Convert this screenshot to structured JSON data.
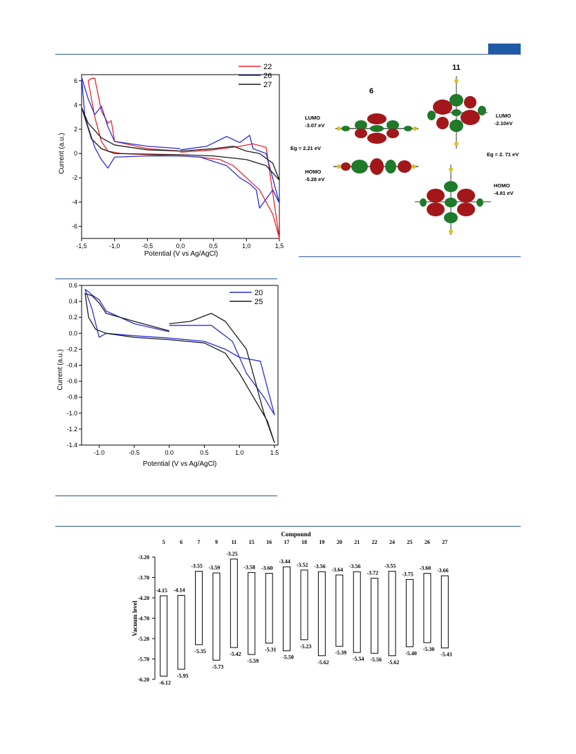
{
  "colors": {
    "rule": "#2f5597",
    "red": "#e8242b",
    "blue": "#2b2bd9",
    "black": "#1a1a1a"
  },
  "chart_data": [
    {
      "type": "line",
      "xlabel": "Potential (V vs Ag/AgCl)",
      "ylabel": "Current (a.u.)",
      "xlim": [
        -1.5,
        1.5
      ],
      "ylim": [
        -7,
        6.5
      ],
      "xticks": [
        "-1,5",
        "-1,0",
        "-0,5",
        "0,0",
        "0,5",
        "1,0",
        "1,5"
      ],
      "xtickValues": [
        -1.5,
        -1.0,
        -0.5,
        0.0,
        0.5,
        1.0,
        1.5
      ],
      "yticks": [
        -6,
        -4,
        -2,
        0,
        2,
        4,
        6
      ],
      "legend_position": "top-right",
      "series": [
        {
          "name": "22",
          "color": "#e8242b",
          "x": [
            0.0,
            0.5,
            0.9,
            1.1,
            1.3,
            1.5,
            1.4,
            1.2,
            1.0,
            0.8,
            0.6,
            0.3,
            0.0,
            -0.5,
            -0.9,
            -1.1,
            -1.2,
            -1.3,
            -1.4,
            -1.35,
            -1.3,
            -1.2,
            -1.1,
            -1.05,
            -1.0,
            -0.5,
            0.0
          ],
          "y": [
            0.1,
            0.3,
            0.6,
            0.8,
            0.5,
            -7.0,
            -5.0,
            -3.0,
            -2.0,
            -1.0,
            -0.5,
            -0.3,
            -0.2,
            -0.1,
            0.0,
            0.2,
            1.0,
            3.0,
            6.0,
            6.2,
            6.2,
            3.5,
            2.5,
            2.7,
            1.0,
            0.4,
            0.2
          ]
        },
        {
          "name": "26",
          "color": "#2b2bd9",
          "x": [
            0.0,
            0.4,
            0.7,
            0.9,
            1.05,
            1.1,
            1.3,
            1.5,
            1.4,
            1.2,
            1.15,
            1.05,
            0.9,
            0.7,
            0.3,
            0.0,
            -0.5,
            -1.0,
            -1.1,
            -1.2,
            -1.3,
            -1.45,
            -1.5,
            -1.4,
            -1.3,
            -1.2,
            -1.1,
            -1.0,
            -0.5,
            0.0
          ],
          "y": [
            0.3,
            0.6,
            1.4,
            0.9,
            1.5,
            0.4,
            0.0,
            -4.1,
            -3.0,
            -4.5,
            -3.0,
            -2.5,
            -2.0,
            -1.0,
            -0.3,
            -0.2,
            -0.2,
            -0.3,
            -1.2,
            -0.5,
            0.5,
            3.0,
            6.3,
            4.5,
            3.2,
            3.9,
            2.2,
            1.0,
            0.6,
            0.4
          ]
        },
        {
          "name": "27",
          "color": "#1a1a1a",
          "x": [
            0.0,
            0.5,
            0.8,
            1.0,
            1.2,
            1.4,
            1.5,
            1.3,
            1.0,
            0.5,
            0.0,
            -0.5,
            -1.0,
            -1.2,
            -1.35,
            -1.5,
            -1.4,
            -1.2,
            -1.0,
            -0.5,
            0.0
          ],
          "y": [
            0.2,
            0.4,
            0.6,
            0.2,
            0.0,
            -0.8,
            -2.2,
            -1.0,
            -0.5,
            -0.2,
            -0.1,
            -0.05,
            0.0,
            0.4,
            1.2,
            3.8,
            2.5,
            1.3,
            0.7,
            0.3,
            0.2
          ]
        }
      ]
    },
    {
      "type": "line",
      "xlabel": "Potential (V vs Ag/AgCl)",
      "ylabel": "Current (a.u.)",
      "xlim": [
        -1.25,
        1.55
      ],
      "ylim": [
        -1.4,
        0.6
      ],
      "xticks": [
        "-1.0",
        "-0.5",
        "0.0",
        "0.5",
        "1.0",
        "1.5"
      ],
      "xtickValues": [
        -1.0,
        -0.5,
        0.0,
        0.5,
        1.0,
        1.5
      ],
      "yticks": [
        "-1.4",
        "-1.2",
        "-1.0",
        "-0.8",
        "-0.6",
        "-0.4",
        "-0.2",
        "0.0",
        "0.2",
        "0.4",
        "0.6"
      ],
      "ytickValues": [
        -1.4,
        -1.2,
        -1.0,
        -0.8,
        -0.6,
        -0.4,
        -0.2,
        0.0,
        0.2,
        0.4,
        0.6
      ],
      "legend_position": "top-right",
      "series": [
        {
          "name": "20",
          "color": "#2b2bd9",
          "x": [
            0.0,
            -0.5,
            -0.9,
            -1.0,
            -1.1,
            -1.15,
            -1.2,
            -1.1,
            -1.0,
            -0.9,
            -0.5,
            0.0,
            0.5,
            0.8,
            1.0,
            1.3,
            1.5,
            1.35,
            1.1,
            0.9,
            0.6,
            0.3,
            0.0
          ],
          "y": [
            0.02,
            0.12,
            0.28,
            0.42,
            0.48,
            0.52,
            0.55,
            0.3,
            -0.05,
            0.0,
            -0.03,
            -0.06,
            -0.1,
            -0.2,
            -0.3,
            -0.35,
            -1.02,
            -0.8,
            -0.5,
            -0.1,
            0.1,
            0.1,
            0.1
          ]
        },
        {
          "name": "25",
          "color": "#1a1a1a",
          "x": [
            0.0,
            -0.5,
            -0.9,
            -1.0,
            -1.1,
            -1.2,
            -1.15,
            -1.05,
            -0.9,
            -0.5,
            0.0,
            0.5,
            0.8,
            1.0,
            1.2,
            1.4,
            1.5,
            1.35,
            1.1,
            0.8,
            0.6,
            0.3,
            0.0
          ],
          "y": [
            0.03,
            0.15,
            0.25,
            0.38,
            0.47,
            0.5,
            0.2,
            0.05,
            0.0,
            -0.05,
            -0.08,
            -0.12,
            -0.25,
            -0.5,
            -0.8,
            -1.1,
            -1.37,
            -1.0,
            -0.2,
            0.15,
            0.25,
            0.15,
            0.12
          ]
        }
      ]
    },
    {
      "type": "bar",
      "title": "Compound",
      "ylabel": "Vacuum level",
      "ylim": [
        -6.2,
        -3.2
      ],
      "yticks": [
        "-3.20",
        "-3.70",
        "-4.20",
        "-4.70",
        "-5.20",
        "-5.70",
        "-6.20"
      ],
      "ytickValues": [
        -3.2,
        -3.7,
        -4.2,
        -4.7,
        -5.2,
        -5.7,
        -6.2
      ],
      "categories": [
        "5",
        "6",
        "7",
        "9",
        "11",
        "15",
        "16",
        "17",
        "18",
        "19",
        "20",
        "21",
        "22",
        "24",
        "25",
        "26",
        "27"
      ],
      "lumo": [
        -4.15,
        -4.14,
        -3.55,
        -3.59,
        -3.25,
        -3.58,
        -3.6,
        -3.44,
        -3.52,
        -3.56,
        -3.64,
        -3.56,
        -3.72,
        -3.55,
        -3.75,
        -3.6,
        -3.66
      ],
      "homo": [
        -6.12,
        -5.95,
        -5.35,
        -5.73,
        -5.42,
        -5.59,
        -5.31,
        -5.5,
        -5.23,
        -5.62,
        -5.39,
        -5.54,
        -5.56,
        -5.62,
        -5.4,
        -5.3,
        -5.43
      ],
      "lumo_labels": [
        "-4.15",
        "-4.14",
        "-3.55",
        "-3.59",
        "-3.25",
        "-3.58",
        "-3.60",
        "-3.44",
        "-3.52",
        "-3.56",
        "-3.64",
        "-3.56",
        "-3.72",
        "-3.55",
        "-3.75",
        "-3.60",
        "-3.66"
      ],
      "homo_labels": [
        "-6.12",
        "-5.95",
        "-5.35",
        "-5.73",
        "-5.42",
        "-5.59",
        "-5.31",
        "-5.50",
        "-5.23",
        "-5.62",
        "-5.39",
        "-5.54",
        "-5.56",
        "-5.62",
        "-5.40",
        "-5.30",
        "-5.43"
      ]
    }
  ],
  "orbitals": {
    "left": {
      "id": "6",
      "lumo_label": "LUMO",
      "lumo_energy": "-3.07 eV",
      "gap": "Eg = 2.21 eV",
      "homo_label": "HOMO",
      "homo_energy": "-5.28 eV"
    },
    "right": {
      "id": "11",
      "lumo_label": "LUMO",
      "lumo_energy": "-2.10eV",
      "gap": "Eg = 2. 71 eV",
      "homo_label": "HOMO",
      "homo_energy": "-4.81 eV"
    }
  }
}
